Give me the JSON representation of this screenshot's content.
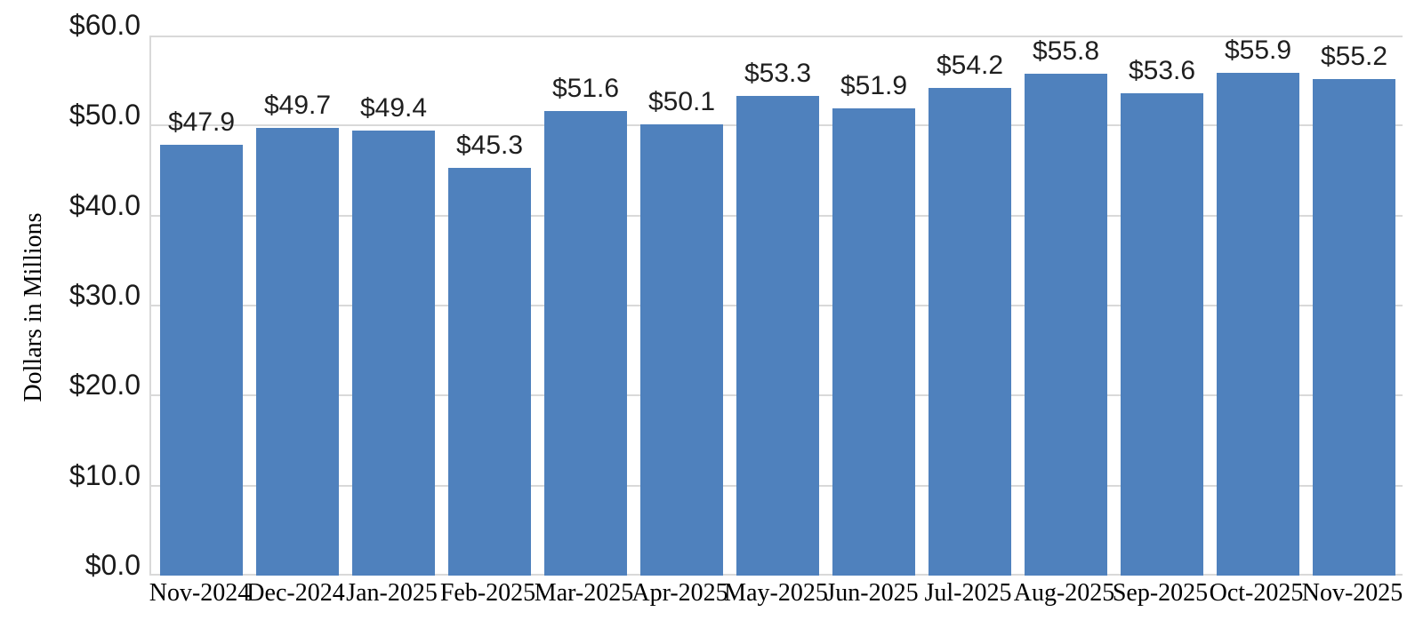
{
  "chart_data": {
    "type": "bar",
    "title": "",
    "xlabel": "",
    "ylabel": "Dollars in Millions",
    "categories": [
      "Nov-2024",
      "Dec-2024",
      "Jan-2025",
      "Feb-2025",
      "Mar-2025",
      "Apr-2025",
      "May-2025",
      "Jun-2025",
      "Jul-2025",
      "Aug-2025",
      "Sep-2025",
      "Oct-2025",
      "Nov-2025"
    ],
    "values": [
      47.9,
      49.7,
      49.4,
      45.3,
      51.6,
      50.1,
      53.3,
      51.9,
      54.2,
      55.8,
      53.6,
      55.9,
      55.2
    ],
    "bar_labels": [
      "$47.9",
      "$49.7",
      "$49.4",
      "$45.3",
      "$51.6",
      "$50.1",
      "$53.3",
      "$51.9",
      "$54.2",
      "$55.8",
      "$53.6",
      "$55.9",
      "$55.2"
    ],
    "ylim": [
      0,
      60
    ],
    "y_tick_values": [
      0,
      10,
      20,
      30,
      40,
      50,
      60
    ],
    "y_tick_labels": [
      "$0.0",
      "$10.0",
      "$20.0",
      "$30.0",
      "$40.0",
      "$50.0",
      "$60.0"
    ],
    "grid": "horizontal gridlines on",
    "legend_position": "none",
    "colors": {
      "bar": "#4f81bd",
      "gridline": "#d9d9d9",
      "axis_line": "#d9d9d9",
      "tick_text": "#1a1a1a",
      "background": "#ffffff"
    }
  }
}
